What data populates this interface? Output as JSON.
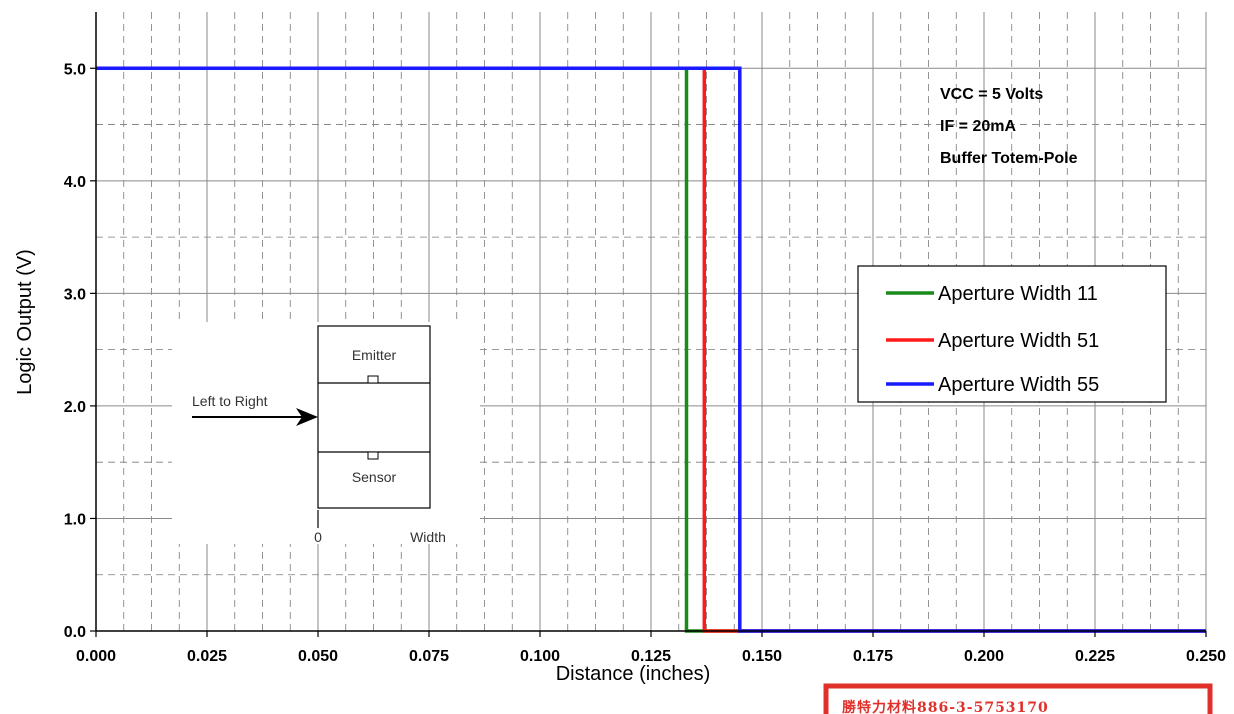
{
  "chart_data": {
    "type": "line",
    "xlabel": "Distance (inches)",
    "ylabel": "Logic Output  (V)",
    "xlim": [
      0,
      0.25
    ],
    "ylim": [
      0,
      5.5
    ],
    "x_ticks": [
      "0.000",
      "0.025",
      "0.050",
      "0.075",
      "0.100",
      "0.125",
      "0.150",
      "0.175",
      "0.200",
      "0.225",
      "0.250"
    ],
    "y_ticks": [
      "0.0",
      "1.0",
      "2.0",
      "3.0",
      "4.0",
      "5.0"
    ],
    "grid": true,
    "legend_position": "right",
    "annotations": [
      "VCC = 5 Volts",
      "IF = 20mA",
      "Buffer Totem-Pole"
    ],
    "series": [
      {
        "name": "Aperture Width 11",
        "color": "#1a8a1a",
        "points": [
          [
            0,
            5.0
          ],
          [
            0.133,
            5.0
          ],
          [
            0.133,
            0.0
          ],
          [
            0.25,
            0.0
          ]
        ]
      },
      {
        "name": "Aperture Width 51",
        "color": "#ff1a1a",
        "points": [
          [
            0,
            5.0
          ],
          [
            0.137,
            5.0
          ],
          [
            0.137,
            0.0
          ],
          [
            0.25,
            0.0
          ]
        ]
      },
      {
        "name": "Aperture Width 55",
        "color": "#1a1aff",
        "points": [
          [
            0,
            5.0
          ],
          [
            0.145,
            5.0
          ],
          [
            0.145,
            0.0
          ],
          [
            0.25,
            0.0
          ]
        ]
      }
    ]
  },
  "inset": {
    "emitter": "Emitter",
    "sensor": "Sensor",
    "direction": "Left to Right",
    "zero": "0",
    "width": "Width"
  },
  "stamp": {
    "text": "勝特力材料886-3-5753170"
  }
}
